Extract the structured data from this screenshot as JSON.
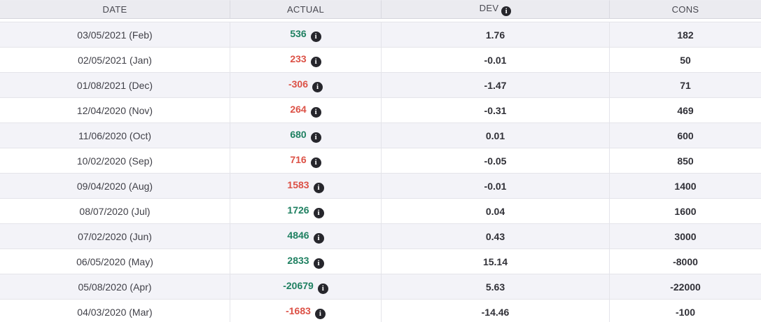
{
  "table": {
    "columns": [
      {
        "key": "date",
        "label": "DATE",
        "has_info_icon": false
      },
      {
        "key": "actual",
        "label": "ACTUAL",
        "has_info_icon": false
      },
      {
        "key": "dev",
        "label": "DEV",
        "has_info_icon": true
      },
      {
        "key": "cons",
        "label": "CONS",
        "has_info_icon": false
      }
    ],
    "icons": {
      "info": "i"
    },
    "colors": {
      "positive_value": "#1f8061",
      "negative_value": "#dc5146",
      "header_bg": "#ebebf0",
      "stripe_row_bg": "#f3f3f8",
      "info_icon_bg": "#26262c"
    },
    "rows": [
      {
        "date": "03/05/2021 (Feb)",
        "actual": "536",
        "actual_color": "green",
        "dev": "1.76",
        "cons": "182"
      },
      {
        "date": "02/05/2021 (Jan)",
        "actual": "233",
        "actual_color": "red",
        "dev": "-0.01",
        "cons": "50"
      },
      {
        "date": "01/08/2021 (Dec)",
        "actual": "-306",
        "actual_color": "red",
        "dev": "-1.47",
        "cons": "71"
      },
      {
        "date": "12/04/2020 (Nov)",
        "actual": "264",
        "actual_color": "red",
        "dev": "-0.31",
        "cons": "469"
      },
      {
        "date": "11/06/2020 (Oct)",
        "actual": "680",
        "actual_color": "green",
        "dev": "0.01",
        "cons": "600"
      },
      {
        "date": "10/02/2020 (Sep)",
        "actual": "716",
        "actual_color": "red",
        "dev": "-0.05",
        "cons": "850"
      },
      {
        "date": "09/04/2020 (Aug)",
        "actual": "1583",
        "actual_color": "red",
        "dev": "-0.01",
        "cons": "1400"
      },
      {
        "date": "08/07/2020 (Jul)",
        "actual": "1726",
        "actual_color": "green",
        "dev": "0.04",
        "cons": "1600"
      },
      {
        "date": "07/02/2020 (Jun)",
        "actual": "4846",
        "actual_color": "green",
        "dev": "0.43",
        "cons": "3000"
      },
      {
        "date": "06/05/2020 (May)",
        "actual": "2833",
        "actual_color": "green",
        "dev": "15.14",
        "cons": "-8000"
      },
      {
        "date": "05/08/2020 (Apr)",
        "actual": "-20679",
        "actual_color": "green",
        "dev": "5.63",
        "cons": "-22000"
      },
      {
        "date": "04/03/2020 (Mar)",
        "actual": "-1683",
        "actual_color": "red",
        "dev": "-14.46",
        "cons": "-100"
      }
    ]
  }
}
